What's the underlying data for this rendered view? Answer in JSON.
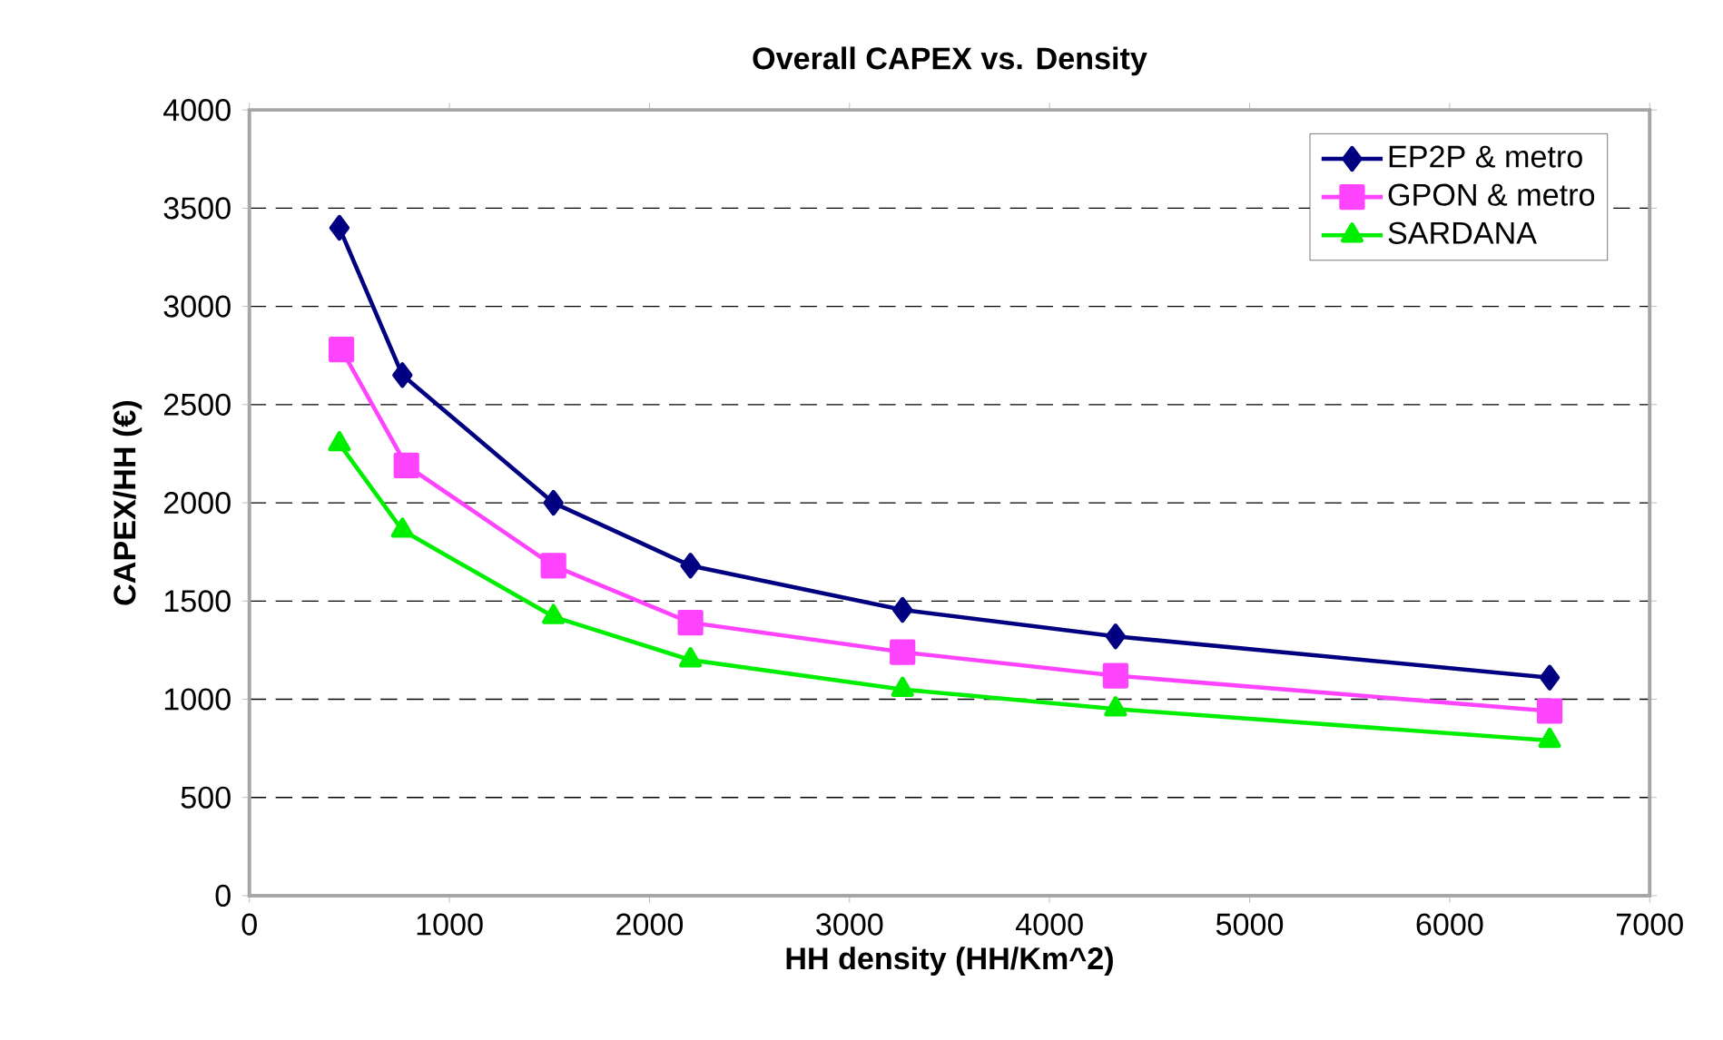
{
  "chart_data": {
    "type": "line",
    "title": "Overall CAPEX vs. Density",
    "xlabel": "HH density (HH/Km^2)",
    "ylabel": "CAPEX/HH (€)",
    "xlim": [
      0,
      7000
    ],
    "xticks": [
      0,
      1000,
      2000,
      3000,
      4000,
      5000,
      6000,
      7000
    ],
    "ylim": [
      0,
      4000
    ],
    "yticks": [
      0,
      500,
      1000,
      1500,
      2000,
      2500,
      3000,
      3500,
      4000
    ],
    "grid": "y",
    "legend": "top right",
    "series": [
      {
        "name": "EP2P & metro",
        "color": "#000080",
        "marker": "diamond",
        "x": [
          450,
          765,
          1520,
          2205,
          3265,
          4330,
          6500
        ],
        "values": [
          3400,
          2650,
          2000,
          1680,
          1455,
          1320,
          1110
        ]
      },
      {
        "name": "GPON & metro",
        "color": "#ff44ff",
        "marker": "square",
        "x": [
          460,
          785,
          1520,
          2205,
          3265,
          4330,
          6500
        ],
        "values": [
          2780,
          2190,
          1680,
          1390,
          1240,
          1120,
          940
        ]
      },
      {
        "name": "SARDANA",
        "color": "#00ee00",
        "marker": "triangle",
        "x": [
          450,
          765,
          1520,
          2205,
          3265,
          4330,
          6500
        ],
        "values": [
          2300,
          1860,
          1420,
          1200,
          1050,
          950,
          790
        ]
      }
    ]
  }
}
